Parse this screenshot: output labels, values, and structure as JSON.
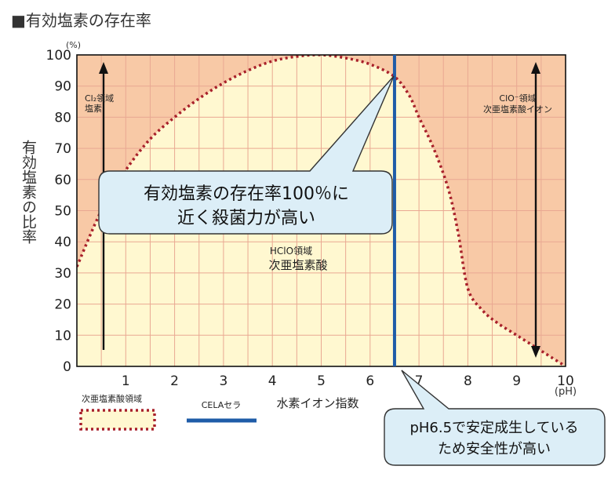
{
  "title": "■有効塩素の存在率",
  "chart_data": {
    "type": "line",
    "ylabel": "有効塩素の比率",
    "ylabel_unit": "(%)",
    "xlabel": "水素イオン指数",
    "xlabel_unit": "(pH)",
    "x_ticks": [
      1,
      2,
      3,
      4,
      5,
      6,
      7,
      8,
      9,
      10
    ],
    "y_ticks": [
      0,
      10,
      20,
      30,
      40,
      50,
      60,
      70,
      80,
      90,
      100
    ],
    "xlim": [
      0,
      10
    ],
    "ylim": [
      0,
      100
    ],
    "grid": true,
    "series": [
      {
        "name": "次亜塩素酸領域",
        "values": [
          [
            0.0,
            32
          ],
          [
            0.5,
            50
          ],
          [
            1.0,
            63
          ],
          [
            1.5,
            73
          ],
          [
            2.0,
            80
          ],
          [
            2.5,
            86
          ],
          [
            3.0,
            91
          ],
          [
            3.5,
            95
          ],
          [
            4.0,
            98
          ],
          [
            4.5,
            99.5
          ],
          [
            5.0,
            100
          ],
          [
            5.5,
            99
          ],
          [
            6.0,
            97
          ],
          [
            6.5,
            93
          ],
          [
            6.8,
            87
          ],
          [
            7.0,
            80
          ],
          [
            7.3,
            70
          ],
          [
            7.6,
            57
          ],
          [
            7.8,
            43
          ],
          [
            8.0,
            25
          ],
          [
            8.3,
            18
          ],
          [
            8.6,
            14
          ],
          [
            9.0,
            10
          ],
          [
            9.4,
            6
          ],
          [
            9.7,
            3
          ],
          [
            10.0,
            0
          ]
        ]
      },
      {
        "name": "CELAセラ",
        "x": 6.5
      }
    ],
    "regions": {
      "left_label_line1": "Cl₂領域",
      "left_label_line2": "塩素",
      "right_label_line1": "ClO⁻領域",
      "right_label_line2": "次亜塩素酸イオン",
      "center_label_line1": "HClO領域",
      "center_label_line2": "次亜塩素酸"
    },
    "callouts": {
      "main_line1": "有効塩素の存在率100％に",
      "main_line2": "近く殺菌力が高い",
      "ph_line1": "pH6.5で安定成生している",
      "ph_line2": "ため安全性が高い"
    },
    "legend": {
      "hclo_label": "次亜塩素酸領域",
      "cela_label": "CELAセラ"
    },
    "colors": {
      "outer_region": "#F8C9A6",
      "inner_region": "#FFF8D0",
      "grid": "#E9A892",
      "curve": "#A8202A",
      "cela_line": "#1F5CA8",
      "callout_fill": "#DCEEF7",
      "callout_stroke": "#333333"
    }
  }
}
